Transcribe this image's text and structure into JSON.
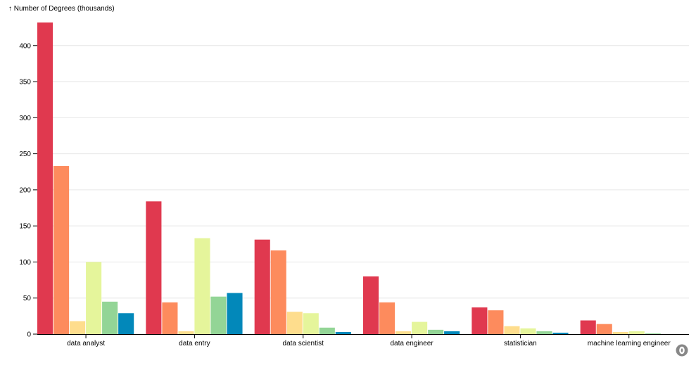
{
  "chart_data": {
    "type": "bar",
    "ylabel": "↑ Number of Degrees (thousands)",
    "xlabel": "",
    "ylim": [
      0,
      430
    ],
    "yticks": [
      0,
      50,
      100,
      150,
      200,
      250,
      300,
      350,
      400
    ],
    "grid": "horizontal",
    "categories": [
      "data analyst",
      "data entry",
      "data scientist",
      "data engineer",
      "statistician",
      "machine learning engineer"
    ],
    "series": [
      {
        "color": "#e0394f",
        "values": [
          432,
          184,
          131,
          80,
          37,
          19
        ]
      },
      {
        "color": "#fd8b5d",
        "values": [
          233,
          44,
          116,
          44,
          33,
          14
        ]
      },
      {
        "color": "#fedd8d",
        "values": [
          18,
          4,
          31,
          4,
          11,
          3
        ]
      },
      {
        "color": "#e5f59b",
        "values": [
          100,
          133,
          29,
          17,
          8,
          4
        ]
      },
      {
        "color": "#93d596",
        "values": [
          45,
          52,
          9,
          6,
          4,
          1
        ]
      },
      {
        "color": "#0288ba",
        "values": [
          29,
          57,
          3,
          4,
          2,
          0
        ]
      }
    ]
  },
  "footer": {
    "logo_icon": "observable-logo-icon"
  }
}
